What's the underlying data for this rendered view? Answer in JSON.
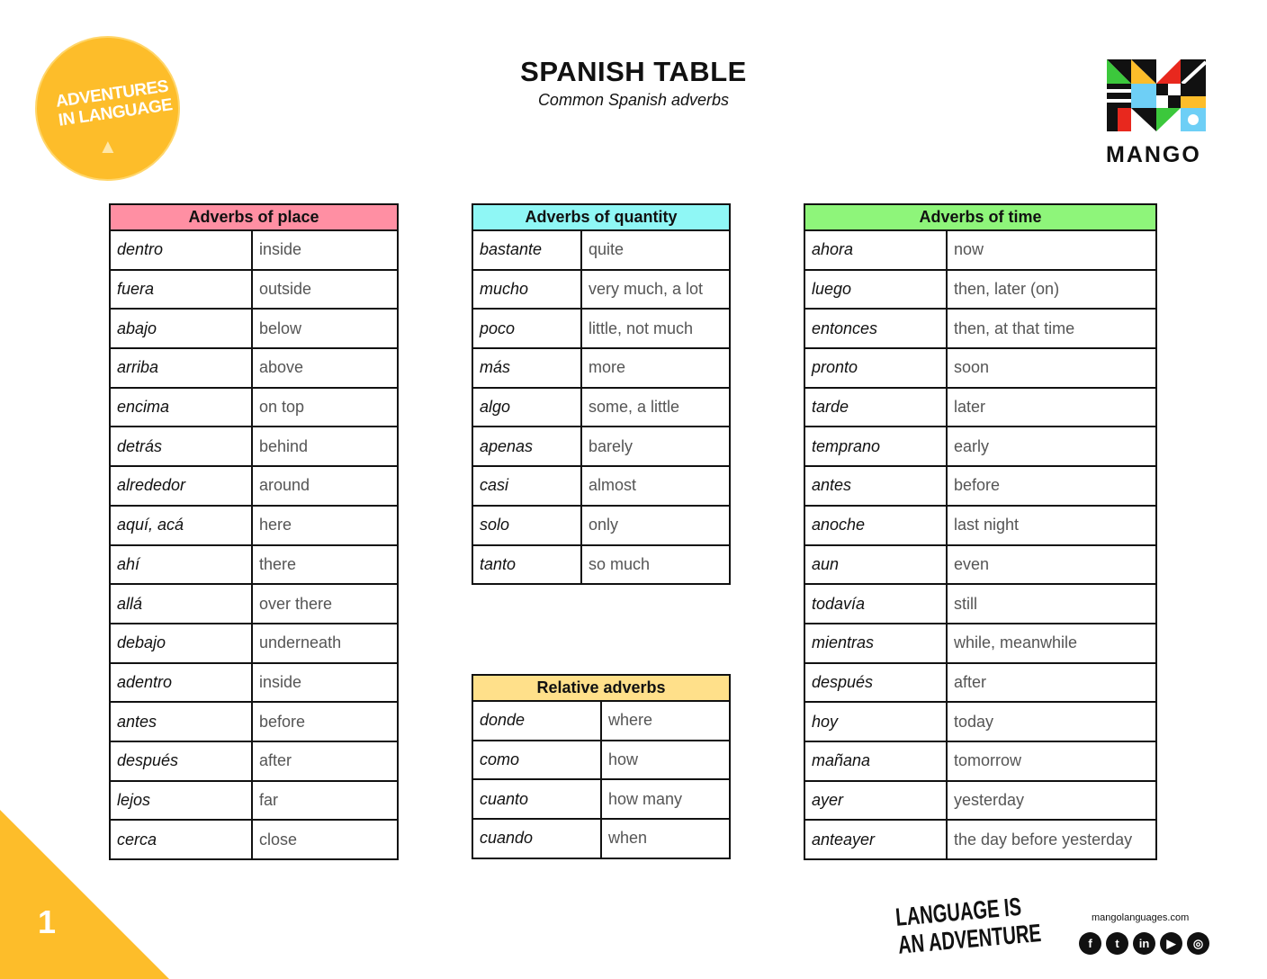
{
  "header": {
    "title": "SPANISH TABLE",
    "subtitle": "Common Spanish adverbs"
  },
  "logos": {
    "adventures": "ADVENTURES IN LANGUAGE",
    "mango": "MANGO",
    "tagline": "LANGUAGE IS AN ADVENTURE"
  },
  "footer": {
    "page": "1",
    "url": "mangolanguages.com",
    "social": [
      "facebook-icon",
      "twitter-icon",
      "linkedin-icon",
      "youtube-icon",
      "instagram-icon"
    ]
  },
  "colors": {
    "place": "#ff8fa3",
    "quantity": "#8ff7f5",
    "time": "#8ef57a",
    "relative": "#ffe08a",
    "accent": "#fdbd2a"
  },
  "tables": [
    {
      "id": "place",
      "title": "Adverbs of place",
      "rows": [
        [
          "dentro",
          "inside"
        ],
        [
          "fuera",
          "outside"
        ],
        [
          "abajo",
          "below"
        ],
        [
          "arriba",
          "above"
        ],
        [
          "encima",
          "on top"
        ],
        [
          "detrás",
          "behind"
        ],
        [
          "alrededor",
          "around"
        ],
        [
          "aquí, acá",
          "here"
        ],
        [
          "ahí",
          "there"
        ],
        [
          "allá",
          "over there"
        ],
        [
          "debajo",
          "underneath"
        ],
        [
          "adentro",
          "inside"
        ],
        [
          "antes",
          "before"
        ],
        [
          "después",
          "after"
        ],
        [
          "lejos",
          "far"
        ],
        [
          "cerca",
          "close"
        ]
      ]
    },
    {
      "id": "quantity",
      "title": "Adverbs of quantity",
      "rows": [
        [
          "bastante",
          "quite"
        ],
        [
          "mucho",
          "very much, a lot"
        ],
        [
          "poco",
          "little, not much"
        ],
        [
          "más",
          "more"
        ],
        [
          "algo",
          "some, a little"
        ],
        [
          "apenas",
          "barely"
        ],
        [
          "casi",
          "almost"
        ],
        [
          "solo",
          "only"
        ],
        [
          "tanto",
          "so much"
        ]
      ]
    },
    {
      "id": "relative",
      "title": "Relative adverbs",
      "rows": [
        [
          "donde",
          "where"
        ],
        [
          "como",
          "how"
        ],
        [
          "cuanto",
          "how many"
        ],
        [
          "cuando",
          "when"
        ]
      ]
    },
    {
      "id": "time",
      "title": "Adverbs of time",
      "rows": [
        [
          "ahora",
          "now"
        ],
        [
          "luego",
          "then, later (on)"
        ],
        [
          "entonces",
          "then, at that time"
        ],
        [
          "pronto",
          "soon"
        ],
        [
          "tarde",
          "later"
        ],
        [
          "temprano",
          "early"
        ],
        [
          "antes",
          "before"
        ],
        [
          "anoche",
          "last night"
        ],
        [
          "aun",
          "even"
        ],
        [
          "todavía",
          "still"
        ],
        [
          "mientras",
          "while, meanwhile"
        ],
        [
          "después",
          "after"
        ],
        [
          "hoy",
          "today"
        ],
        [
          "mañana",
          "tomorrow"
        ],
        [
          "ayer",
          "yesterday"
        ],
        [
          "anteayer",
          "the day before yesterday"
        ]
      ]
    }
  ]
}
